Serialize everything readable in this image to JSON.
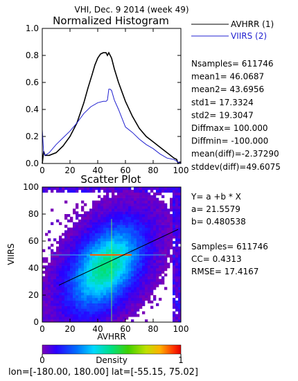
{
  "title": "VHI,  Dec. 9 2014 (week 49)",
  "histogram": {
    "title": "Normalized Histogram",
    "xlim": [
      0,
      100
    ],
    "ylim": [
      0,
      1.0
    ],
    "x_ticks": [
      "0",
      "20",
      "40",
      "60",
      "80",
      "100"
    ],
    "y_ticks": [
      "0.0",
      "0.2",
      "0.4",
      "0.6",
      "0.8",
      "1.0"
    ],
    "legend": [
      {
        "label": "AVHRR (1)",
        "color": "#000000"
      },
      {
        "label": "VIIRS (2)",
        "color": "#2020d0"
      }
    ],
    "stats": [
      "Nsamples= 611746",
      "mean1=     46.0687",
      "mean2=     43.6956",
      "std1=      17.3324",
      "std2=      19.3047",
      "Diffmax=   100.000",
      "Diffmin=   -100.000",
      "mean(diff)=-2.37290",
      "stddev(diff)=49.6075"
    ]
  },
  "scatter": {
    "title": "Scatter Plot",
    "xlabel": "AVHRR",
    "ylabel": "VIIRS",
    "xlim": [
      0,
      100
    ],
    "ylim": [
      0,
      100
    ],
    "x_ticks": [
      "0",
      "20",
      "40",
      "60",
      "80",
      "100"
    ],
    "y_ticks": [
      "0",
      "20",
      "40",
      "60",
      "80",
      "100"
    ],
    "stats": [
      "Y=  a  +b  * X",
      "a=  21.5579",
      "b=  0.480538",
      "",
      "Samples= 611746",
      "CC=   0.4313",
      "RMSE= 17.4167"
    ]
  },
  "colorbar": {
    "label": "Density",
    "min_label": "0",
    "max_label": "1"
  },
  "footer": "lon=[-180.00, 180.00]  lat=[-55.15, 75.02]",
  "chart_data": [
    {
      "type": "line",
      "title": "Normalized Histogram",
      "xlim": [
        0,
        100
      ],
      "ylim": [
        0,
        1.0
      ],
      "series": [
        {
          "name": "AVHRR (1)",
          "color": "#000000",
          "x": [
            0,
            1,
            2,
            5,
            10,
            15,
            20,
            25,
            30,
            33,
            36,
            38,
            40,
            42,
            44,
            46,
            47,
            48,
            50,
            52,
            55,
            60,
            65,
            70,
            75,
            80,
            85,
            90,
            95,
            97,
            98,
            99,
            100
          ],
          "y": [
            0.0,
            0.09,
            0.06,
            0.06,
            0.08,
            0.13,
            0.2,
            0.3,
            0.45,
            0.56,
            0.66,
            0.73,
            0.78,
            0.81,
            0.82,
            0.82,
            0.8,
            0.82,
            0.78,
            0.7,
            0.6,
            0.46,
            0.35,
            0.26,
            0.2,
            0.16,
            0.12,
            0.08,
            0.04,
            0.03,
            0.0,
            0.01,
            0.01
          ]
        },
        {
          "name": "VIIRS (2)",
          "color": "#2020d0",
          "x": [
            0,
            1,
            2,
            5,
            10,
            15,
            20,
            25,
            30,
            35,
            40,
            44,
            46,
            47,
            48,
            49,
            50,
            52,
            55,
            60,
            65,
            70,
            75,
            80,
            85,
            90,
            95,
            98,
            100
          ],
          "y": [
            0.25,
            0.08,
            0.06,
            0.08,
            0.14,
            0.19,
            0.24,
            0.3,
            0.37,
            0.42,
            0.45,
            0.46,
            0.46,
            0.47,
            0.55,
            0.55,
            0.54,
            0.47,
            0.4,
            0.27,
            0.23,
            0.18,
            0.14,
            0.11,
            0.07,
            0.04,
            0.03,
            0.01,
            0.0
          ]
        }
      ]
    },
    {
      "type": "heatmap",
      "title": "Scatter Plot",
      "xlabel": "AVHRR",
      "ylabel": "VIIRS",
      "xlim": [
        0,
        100
      ],
      "ylim": [
        0,
        100
      ],
      "density_center": [
        45,
        40
      ],
      "density_std": [
        16,
        19
      ],
      "regression": {
        "a": 21.5579,
        "b": 0.480538
      },
      "samples": 611746,
      "cc": 0.4313,
      "rmse": 17.4167,
      "colorbar_range": [
        0,
        1
      ]
    }
  ]
}
